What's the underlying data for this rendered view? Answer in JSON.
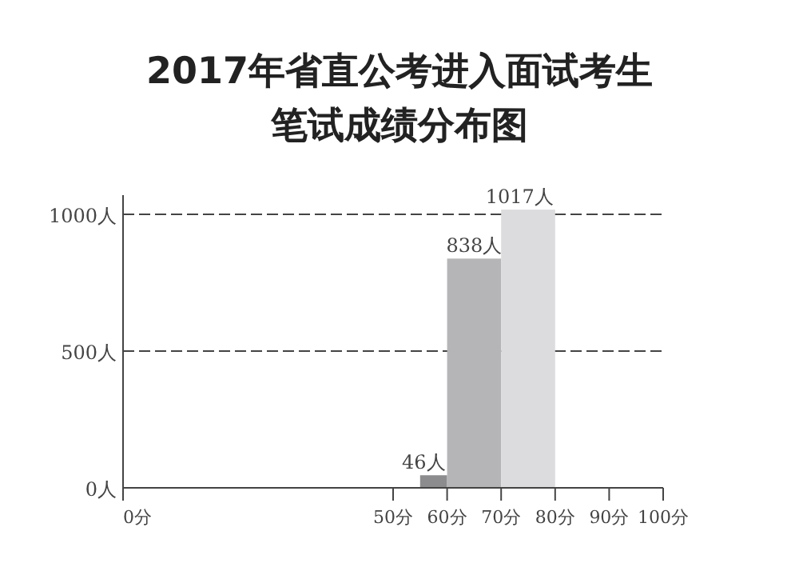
{
  "chart_data": {
    "type": "histogram",
    "title": "2017年省直公考进入面试考生",
    "subtitle": "笔试成绩分布图",
    "bins": [
      55,
      60,
      70,
      80
    ],
    "values": [
      46,
      838,
      1017
    ],
    "value_labels": [
      "46人",
      "838人",
      "1017人"
    ],
    "colors": [
      "#8c8c8e",
      "#b5b5b7",
      "#dcdcde"
    ],
    "xlim": [
      0,
      100
    ],
    "xticks": [
      {
        "value": 0,
        "label": "0分"
      },
      {
        "value": 50,
        "label": "50分"
      },
      {
        "value": 60,
        "label": "60分"
      },
      {
        "value": 70,
        "label": "70分"
      },
      {
        "value": 80,
        "label": "80分"
      },
      {
        "value": 90,
        "label": "90分"
      },
      {
        "value": 100,
        "label": "100分"
      }
    ],
    "ylim": [
      0,
      1070
    ],
    "yticks": [
      {
        "value": 0,
        "label": "0人"
      },
      {
        "value": 500,
        "label": "500人"
      },
      {
        "value": 1000,
        "label": "1000人"
      }
    ],
    "grid": "y",
    "line_style": "dashed"
  }
}
